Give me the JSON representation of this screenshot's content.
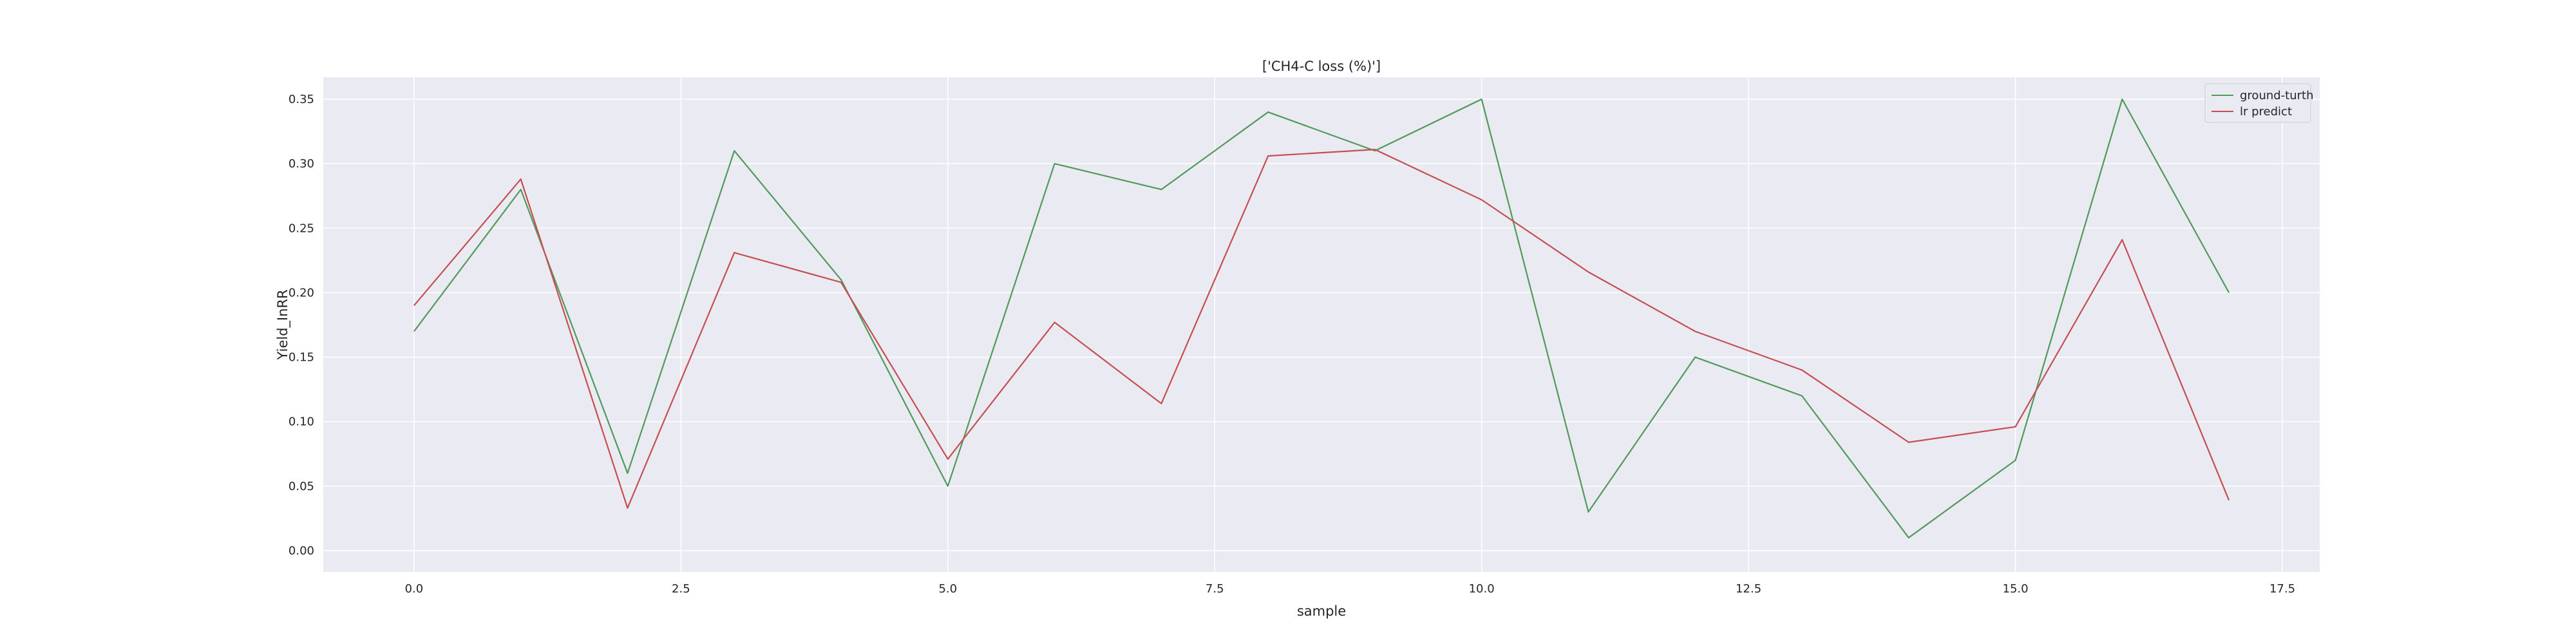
{
  "chart_data": {
    "type": "line",
    "title": "['CH4-C loss (%)']",
    "xlabel": "sample",
    "ylabel": "Yield_InRR",
    "x": [
      0,
      1,
      2,
      3,
      4,
      5,
      6,
      7,
      8,
      9,
      10,
      11,
      12,
      13,
      14,
      15,
      16,
      17
    ],
    "xlim": [
      -0.85,
      17.85
    ],
    "ylim": [
      -0.0165,
      0.367
    ],
    "xticks": [
      0.0,
      2.5,
      5.0,
      7.5,
      10.0,
      12.5,
      15.0,
      17.5
    ],
    "xtick_labels": [
      "0.0",
      "2.5",
      "5.0",
      "7.5",
      "10.0",
      "12.5",
      "15.0",
      "17.5"
    ],
    "yticks": [
      0.0,
      0.05,
      0.1,
      0.15,
      0.2,
      0.25,
      0.3,
      0.35
    ],
    "ytick_labels": [
      "0.00",
      "0.05",
      "0.10",
      "0.15",
      "0.20",
      "0.25",
      "0.30",
      "0.35"
    ],
    "grid": true,
    "legend_position": "top-right",
    "series": [
      {
        "name": "ground-turth",
        "color": "#4f9a5a",
        "values": [
          0.17,
          0.28,
          0.06,
          0.31,
          0.21,
          0.05,
          0.3,
          0.28,
          0.34,
          0.31,
          0.35,
          0.03,
          0.15,
          0.12,
          0.01,
          0.07,
          0.35,
          0.2
        ]
      },
      {
        "name": "lr predict",
        "color": "#c44e52",
        "values": [
          0.19,
          0.288,
          0.033,
          0.231,
          0.208,
          0.071,
          0.177,
          0.114,
          0.306,
          0.311,
          0.272,
          0.216,
          0.17,
          0.14,
          0.084,
          0.096,
          0.241,
          0.039
        ]
      }
    ]
  }
}
